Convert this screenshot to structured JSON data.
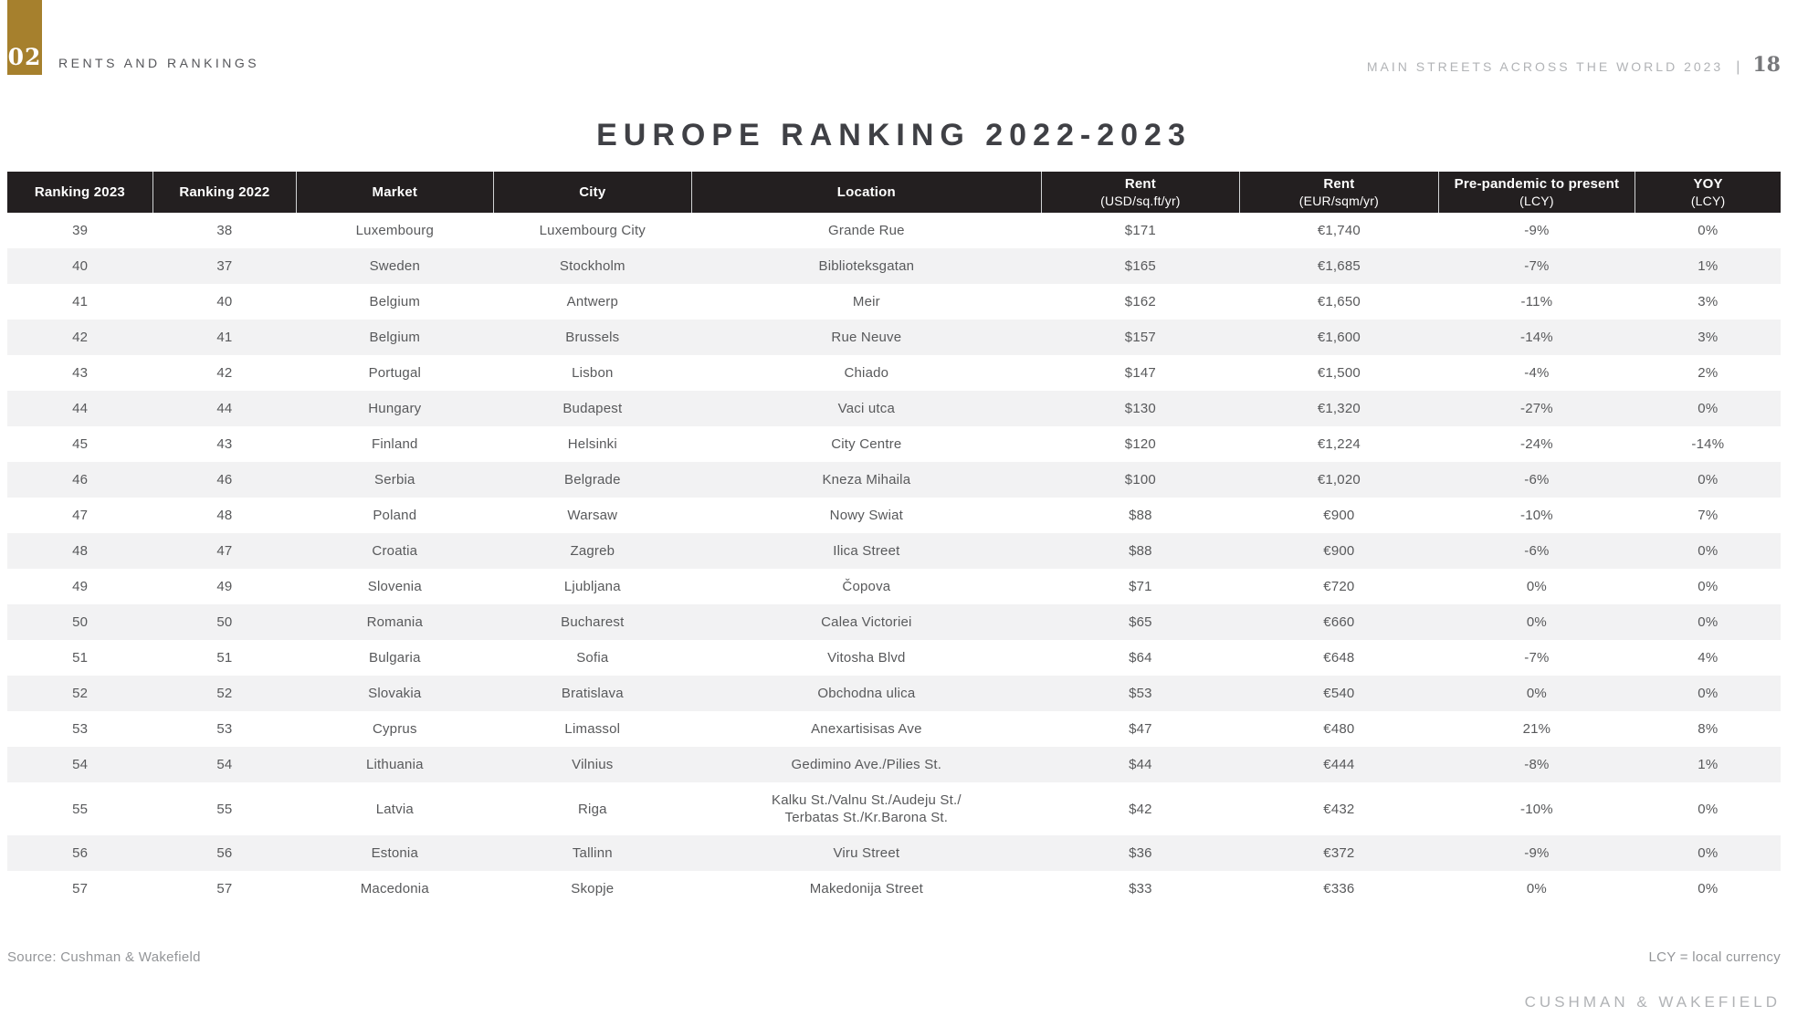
{
  "colors": {
    "accent_gold": "#a6802d",
    "header_bg": "#231f20",
    "row_alt": "#f2f2f3",
    "body_text": "#58595b",
    "muted_gray": "#939598",
    "light_gray": "#b1b3b6"
  },
  "header": {
    "section_number": "02",
    "section_title": "RENTS AND RANKINGS",
    "report_title": "MAIN STREETS ACROSS THE WORLD 2023",
    "separator": "|",
    "page_number": "18"
  },
  "title": "EUROPE RANKING 2022-2023",
  "table": {
    "columns": [
      {
        "label": "Ranking 2023",
        "sub": ""
      },
      {
        "label": "Ranking 2022",
        "sub": ""
      },
      {
        "label": "Market",
        "sub": ""
      },
      {
        "label": "City",
        "sub": ""
      },
      {
        "label": "Location",
        "sub": ""
      },
      {
        "label": "Rent",
        "sub": "(USD/sq.ft/yr)"
      },
      {
        "label": "Rent",
        "sub": "(EUR/sqm/yr)"
      },
      {
        "label": "Pre-pandemic to present",
        "sub": "(LCY)"
      },
      {
        "label": "YOY",
        "sub": "(LCY)"
      }
    ],
    "rows": [
      [
        "39",
        "38",
        "Luxembourg",
        "Luxembourg City",
        "Grande Rue",
        "$171",
        "€1,740",
        "-9%",
        "0%"
      ],
      [
        "40",
        "37",
        "Sweden",
        "Stockholm",
        "Biblioteksgatan",
        "$165",
        "€1,685",
        "-7%",
        "1%"
      ],
      [
        "41",
        "40",
        "Belgium",
        "Antwerp",
        "Meir",
        "$162",
        "€1,650",
        "-11%",
        "3%"
      ],
      [
        "42",
        "41",
        "Belgium",
        "Brussels",
        "Rue Neuve",
        "$157",
        "€1,600",
        "-14%",
        "3%"
      ],
      [
        "43",
        "42",
        "Portugal",
        "Lisbon",
        "Chiado",
        "$147",
        "€1,500",
        "-4%",
        "2%"
      ],
      [
        "44",
        "44",
        "Hungary",
        "Budapest",
        "Vaci utca",
        "$130",
        "€1,320",
        "-27%",
        "0%"
      ],
      [
        "45",
        "43",
        "Finland",
        "Helsinki",
        "City Centre",
        "$120",
        "€1,224",
        "-24%",
        "-14%"
      ],
      [
        "46",
        "46",
        "Serbia",
        "Belgrade",
        "Kneza Mihaila",
        "$100",
        "€1,020",
        "-6%",
        "0%"
      ],
      [
        "47",
        "48",
        "Poland",
        "Warsaw",
        "Nowy Swiat",
        "$88",
        "€900",
        "-10%",
        "7%"
      ],
      [
        "48",
        "47",
        "Croatia",
        "Zagreb",
        "Ilica Street",
        "$88",
        "€900",
        "-6%",
        "0%"
      ],
      [
        "49",
        "49",
        "Slovenia",
        "Ljubljana",
        "Čopova",
        "$71",
        "€720",
        "0%",
        "0%"
      ],
      [
        "50",
        "50",
        "Romania",
        "Bucharest",
        "Calea Victoriei",
        "$65",
        "€660",
        "0%",
        "0%"
      ],
      [
        "51",
        "51",
        "Bulgaria",
        "Sofia",
        "Vitosha Blvd",
        "$64",
        "€648",
        "-7%",
        "4%"
      ],
      [
        "52",
        "52",
        "Slovakia",
        "Bratislava",
        "Obchodna ulica",
        "$53",
        "€540",
        "0%",
        "0%"
      ],
      [
        "53",
        "53",
        "Cyprus",
        "Limassol",
        "Anexartisisas Ave",
        "$47",
        "€480",
        "21%",
        "8%"
      ],
      [
        "54",
        "54",
        "Lithuania",
        "Vilnius",
        "Gedimino Ave./Pilies St.",
        "$44",
        "€444",
        "-8%",
        "1%"
      ],
      [
        "55",
        "55",
        "Latvia",
        "Riga",
        "Kalku St./Valnu St./Audeju St./\nTerbatas St./Kr.Barona St.",
        "$42",
        "€432",
        "-10%",
        "0%"
      ],
      [
        "56",
        "56",
        "Estonia",
        "Tallinn",
        "Viru Street",
        "$36",
        "€372",
        "-9%",
        "0%"
      ],
      [
        "57",
        "57",
        "Macedonia",
        "Skopje",
        "Makedonija Street",
        "$33",
        "€336",
        "0%",
        "0%"
      ]
    ]
  },
  "footer": {
    "source": "Source: Cushman & Wakefield",
    "lcy_note": "LCY = local currency",
    "brand": "CUSHMAN & WAKEFIELD"
  }
}
